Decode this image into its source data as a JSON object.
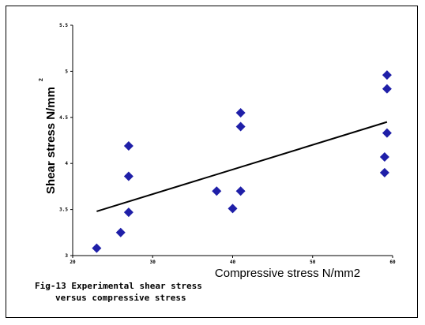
{
  "chart_data": {
    "type": "scatter",
    "title": "",
    "xlabel": "Compressive stress N/mm2",
    "ylabel": "Shear stress N/mm",
    "ylabel_superscript": "2",
    "xlim": [
      20,
      60
    ],
    "ylim": [
      3,
      5.5
    ],
    "xticks": [
      20,
      30,
      40,
      50,
      60
    ],
    "xtick_labels": [
      "20",
      "30",
      "40",
      "50",
      "60"
    ],
    "yticks": [
      3,
      3.5,
      4,
      4.5,
      5,
      5.5
    ],
    "ytick_labels": [
      "3",
      "3.5",
      "4",
      "4.5",
      "5",
      "5.5"
    ],
    "grid": false,
    "marker": "diamond",
    "marker_color": "#1f1fa8",
    "trendline_color": "#000000",
    "series": [
      {
        "x": [
          23,
          26,
          27,
          27,
          27,
          38,
          40,
          41,
          41,
          41,
          59,
          59,
          59.3,
          59.3,
          59.3
        ],
        "y": [
          3.08,
          3.25,
          3.47,
          3.86,
          4.19,
          3.7,
          3.51,
          3.7,
          4.4,
          4.55,
          3.9,
          4.07,
          4.33,
          4.81,
          4.96
        ]
      }
    ],
    "trendline": {
      "x": [
        23,
        59.3
      ],
      "y": [
        3.48,
        4.45
      ]
    }
  },
  "caption": {
    "line1": "Fig-13 Experimental shear stress",
    "line2": "versus compressive stress"
  }
}
